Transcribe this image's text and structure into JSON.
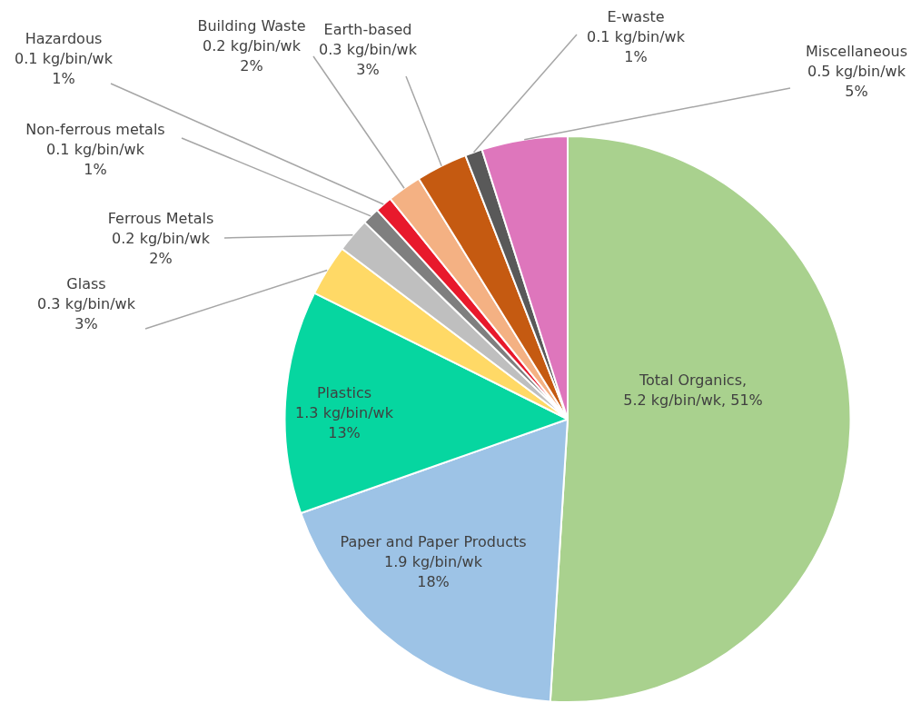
{
  "chart_data": {
    "type": "pie",
    "categories": [
      "Total Organics",
      "Paper and Paper Products",
      "Plastics",
      "Glass",
      "Ferrous Metals",
      "Non-ferrous metals",
      "Hazardous",
      "Building Waste",
      "Earth-based",
      "E-waste",
      "Miscellaneous"
    ],
    "values": [
      5.2,
      1.9,
      1.3,
      0.3,
      0.2,
      0.1,
      0.1,
      0.2,
      0.3,
      0.1,
      0.5
    ],
    "value_labels": [
      ",\n5.2 kg/bin/wk, 51%",
      "\n1.9 kg/bin/wk\n18%",
      "\n1.3 kg/bin/wk\n13%",
      "\n0.3 kg/bin/wk\n3%",
      "\n0.2 kg/bin/wk\n2%",
      "\n0.1 kg/bin/wk\n1%",
      "\n0.1 kg/bin/wk\n1%",
      "\n0.2 kg/bin/wk\n2%",
      "\n0.3 kg/bin/wk\n3%",
      "\n0.1 kg/bin/wk\n1%",
      "\n0.5 kg/bin/wk\n5%"
    ],
    "colors": [
      "#a9d18e",
      "#9dc3e6",
      "#06d6a0",
      "#ffd966",
      "#bfbfbf",
      "#7f7f7f",
      "#e8192c",
      "#f4b183",
      "#c55a11",
      "#595959",
      "#de76bc"
    ],
    "legend": false
  }
}
